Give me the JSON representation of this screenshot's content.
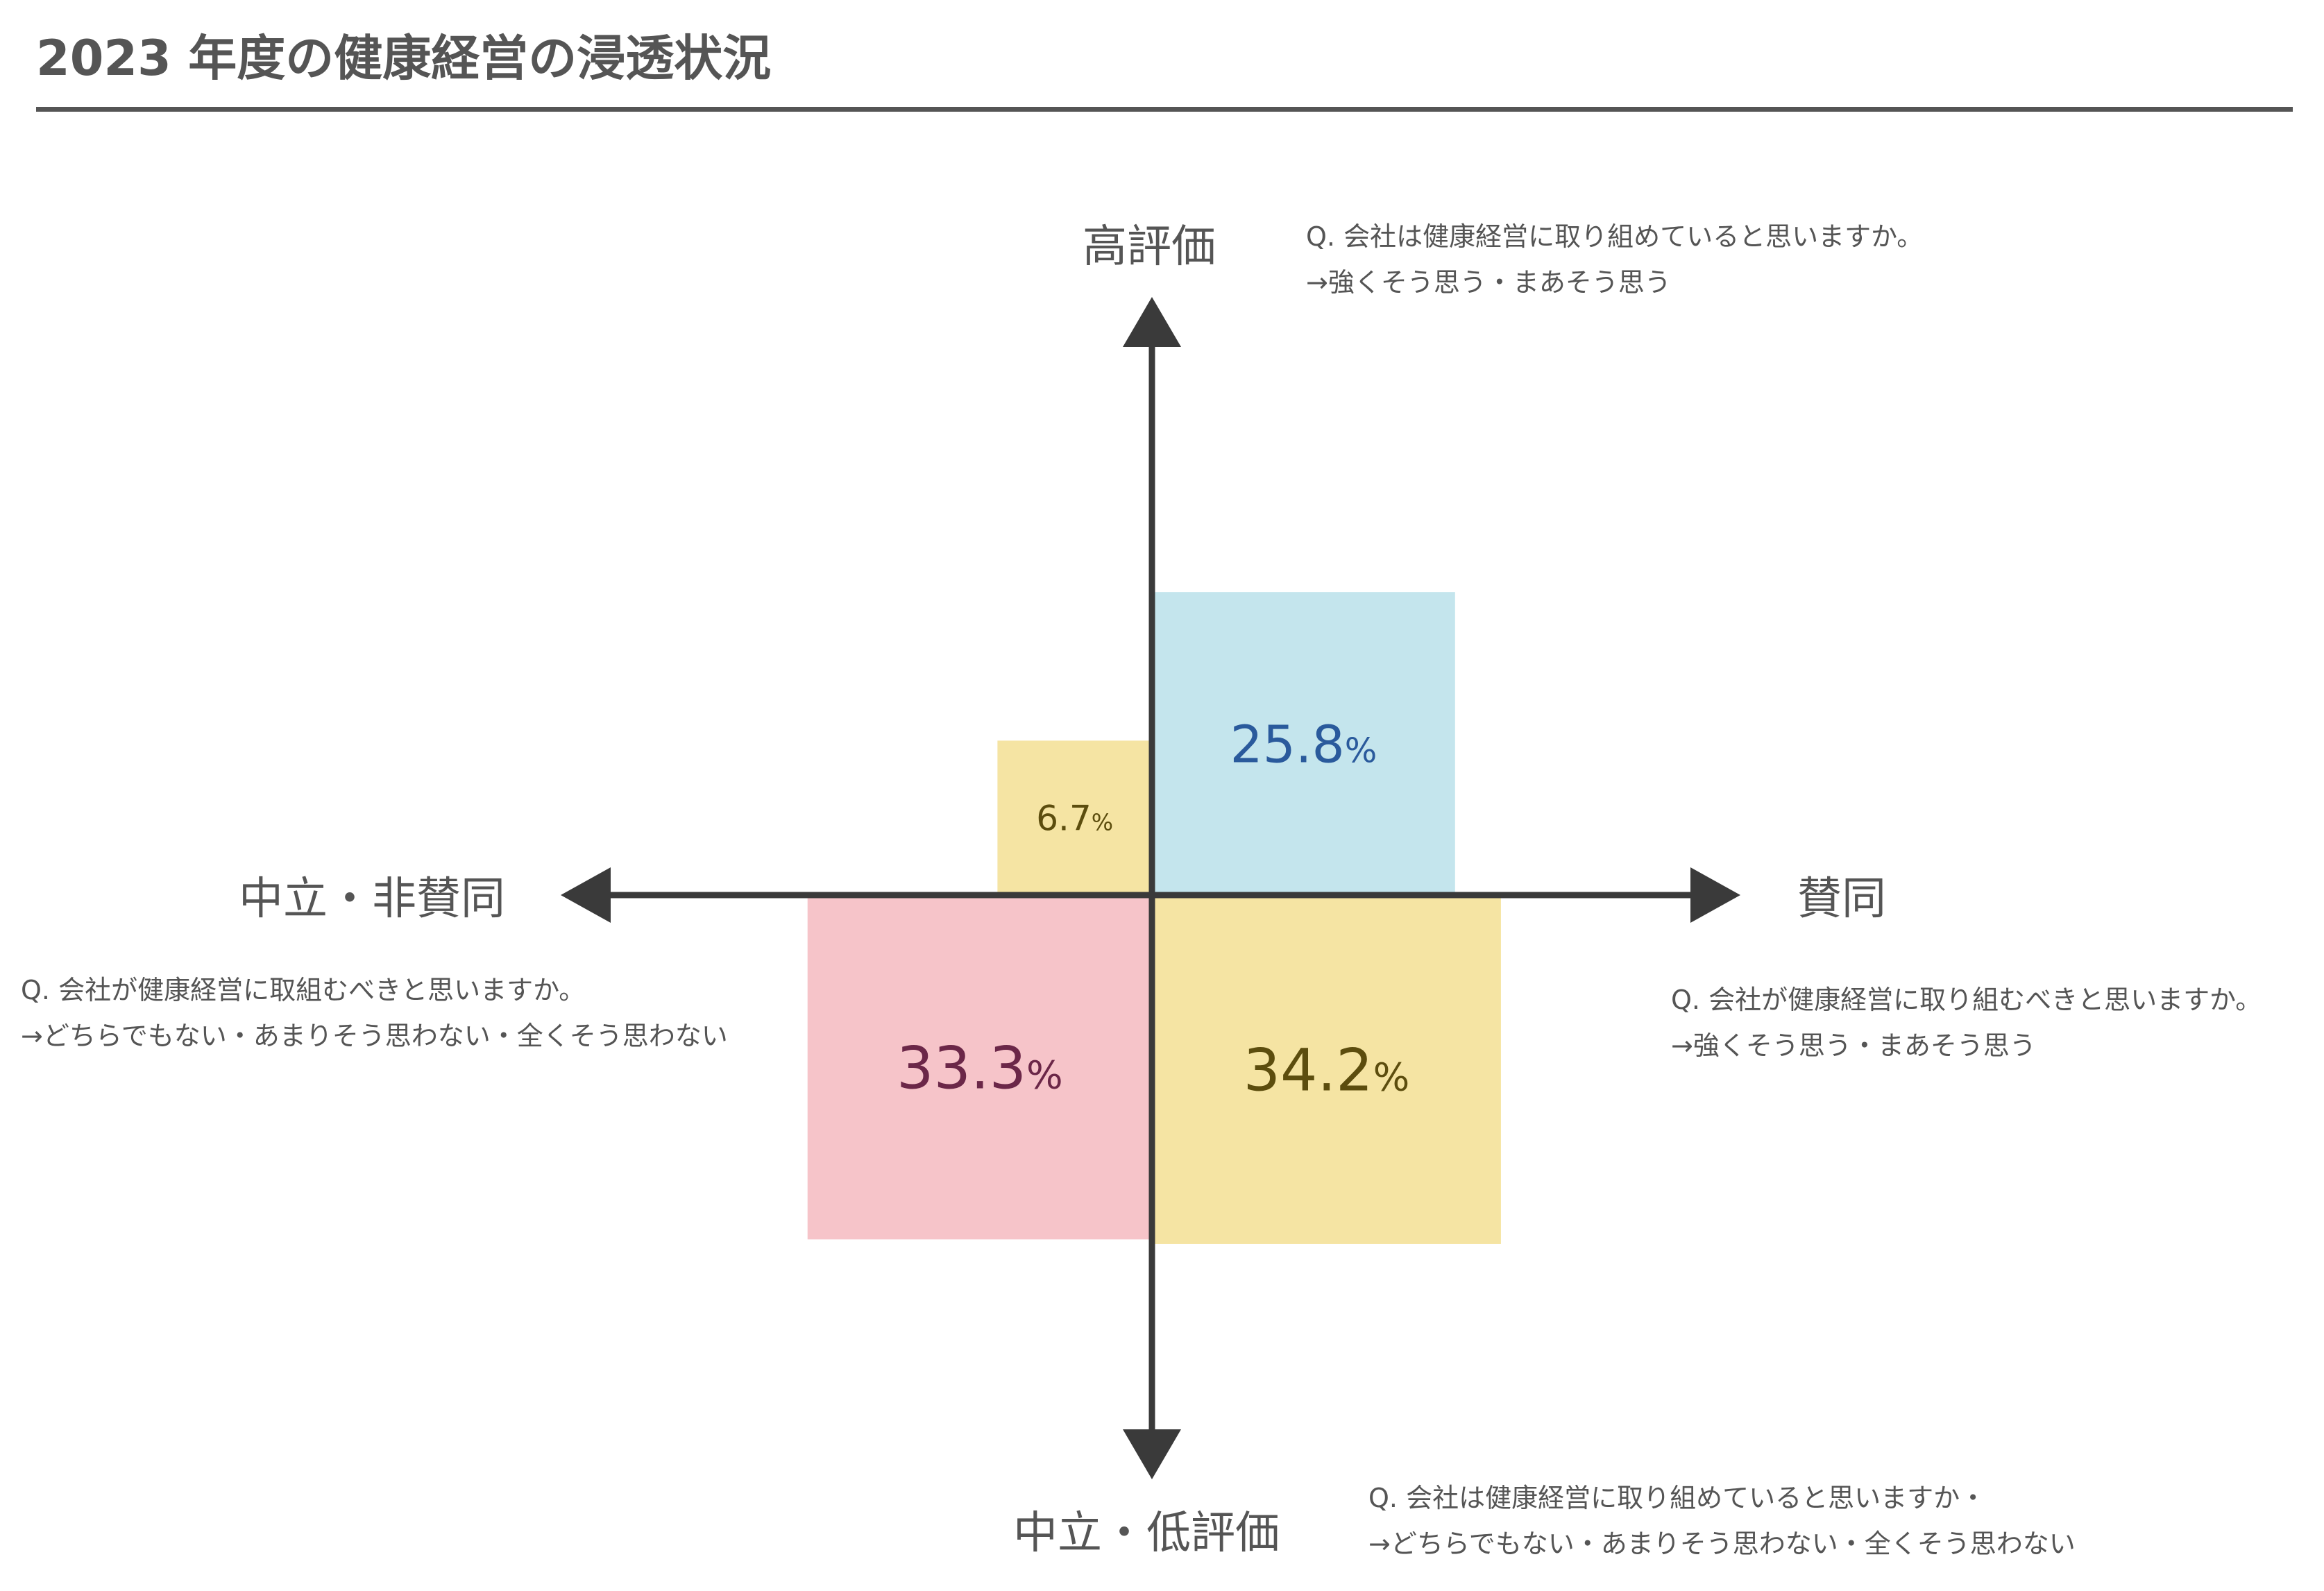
{
  "title": "2023 年度の健康経営の浸透状況",
  "axes": {
    "top": "高評価",
    "bottom": "中立・低評価",
    "left": "中立・非賛同",
    "right": "賛同"
  },
  "notes": {
    "top_right": {
      "q": "Q. 会社は健康経営に取り組めていると思いますか。",
      "a": "→強くそう思う・まあそう思う"
    },
    "left": {
      "q": "Q. 会社が健康経営に取組むべきと思いますか。",
      "a": "→どちらでもない・あまりそう思わない・全くそう思わない"
    },
    "right": {
      "q": "Q. 会社が健康経営に取り組むべきと思いますか。",
      "a": "→強くそう思う・まあそう思う"
    },
    "bottom_right": {
      "q": "Q. 会社は健康経営に取り組めていると思いますか・",
      "a": "→どちらでもない・あまりそう思わない・全くそう思わない"
    }
  },
  "chart_data": {
    "type": "quadrant",
    "unit": "%",
    "quadrants": [
      {
        "position": "top-right",
        "value": 25.8,
        "label": "25.8",
        "fill": "#c4e5ed",
        "text_color": "#2a5a9c"
      },
      {
        "position": "top-left",
        "value": 6.7,
        "label": "6.7",
        "fill": "#f5e4a3",
        "text_color": "#5c4d0e"
      },
      {
        "position": "bottom-left",
        "value": 33.3,
        "label": "33.3",
        "fill": "#f6c4c9",
        "text_color": "#6b2748"
      },
      {
        "position": "bottom-right",
        "value": 34.2,
        "label": "34.2",
        "fill": "#f5e4a3",
        "text_color": "#5c4d0e"
      }
    ],
    "axis_color": "#3a3a3a"
  }
}
